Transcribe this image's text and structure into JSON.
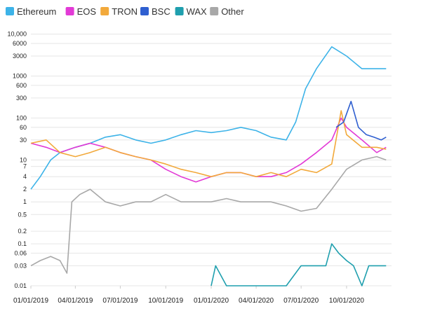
{
  "chart_data": {
    "type": "line",
    "y_scale": "log",
    "ylim": [
      0.01,
      12000
    ],
    "grid": "horizontal",
    "legend_position": "top-left",
    "y_ticks": [
      {
        "v": 0.01,
        "label": "0.01"
      },
      {
        "v": 0.03,
        "label": "0.03"
      },
      {
        "v": 0.06,
        "label": "0.06"
      },
      {
        "v": 0.1,
        "label": "0.1"
      },
      {
        "v": 0.2,
        "label": "0.2"
      },
      {
        "v": 0.5,
        "label": "0.5"
      },
      {
        "v": 1,
        "label": "1"
      },
      {
        "v": 2,
        "label": "2"
      },
      {
        "v": 4,
        "label": "4"
      },
      {
        "v": 7,
        "label": "7"
      },
      {
        "v": 10,
        "label": "10"
      },
      {
        "v": 30,
        "label": "30"
      },
      {
        "v": 60,
        "label": "60"
      },
      {
        "v": 100,
        "label": "100"
      },
      {
        "v": 300,
        "label": "300"
      },
      {
        "v": 600,
        "label": "600"
      },
      {
        "v": 1000,
        "label": "1000"
      },
      {
        "v": 3000,
        "label": "3000"
      },
      {
        "v": 6000,
        "label": "6000"
      },
      {
        "v": 10000,
        "label": "10,000"
      }
    ],
    "x_ticks": [
      {
        "date": "2019-01-01",
        "label": "01/01/2019"
      },
      {
        "date": "2019-04-01",
        "label": "04/01/2019"
      },
      {
        "date": "2019-07-01",
        "label": "07/01/2019"
      },
      {
        "date": "2019-10-01",
        "label": "10/01/2019"
      },
      {
        "date": "2020-01-01",
        "label": "01/01/2020"
      },
      {
        "date": "2020-04-01",
        "label": "04/01/2020"
      },
      {
        "date": "2020-07-01",
        "label": "07/01/2020"
      },
      {
        "date": "2020-10-01",
        "label": "10/01/2020"
      }
    ],
    "series": [
      {
        "name": "Ethereum",
        "color": "#3db3e8",
        "points": [
          [
            "2019-01-01",
            2
          ],
          [
            "2019-01-20",
            4
          ],
          [
            "2019-02-10",
            10
          ],
          [
            "2019-03-01",
            15
          ],
          [
            "2019-04-01",
            20
          ],
          [
            "2019-05-01",
            25
          ],
          [
            "2019-06-01",
            35
          ],
          [
            "2019-07-01",
            40
          ],
          [
            "2019-08-01",
            30
          ],
          [
            "2019-09-01",
            25
          ],
          [
            "2019-10-01",
            30
          ],
          [
            "2019-11-01",
            40
          ],
          [
            "2019-12-01",
            50
          ],
          [
            "2020-01-01",
            45
          ],
          [
            "2020-02-01",
            50
          ],
          [
            "2020-03-01",
            60
          ],
          [
            "2020-04-01",
            50
          ],
          [
            "2020-05-01",
            35
          ],
          [
            "2020-06-01",
            30
          ],
          [
            "2020-06-20",
            80
          ],
          [
            "2020-07-10",
            500
          ],
          [
            "2020-08-01",
            1500
          ],
          [
            "2020-09-01",
            5000
          ],
          [
            "2020-10-01",
            3000
          ],
          [
            "2020-11-01",
            1500
          ],
          [
            "2020-12-01",
            1500
          ],
          [
            "2020-12-20",
            1500
          ]
        ]
      },
      {
        "name": "EOS",
        "color": "#e23ad6",
        "points": [
          [
            "2019-01-01",
            25
          ],
          [
            "2019-02-01",
            20
          ],
          [
            "2019-03-01",
            15
          ],
          [
            "2019-04-01",
            20
          ],
          [
            "2019-05-01",
            25
          ],
          [
            "2019-06-01",
            20
          ],
          [
            "2019-07-01",
            15
          ],
          [
            "2019-08-01",
            12
          ],
          [
            "2019-09-01",
            10
          ],
          [
            "2019-10-01",
            6
          ],
          [
            "2019-11-01",
            4
          ],
          [
            "2019-12-01",
            3
          ],
          [
            "2020-01-01",
            4
          ],
          [
            "2020-02-01",
            5
          ],
          [
            "2020-03-01",
            5
          ],
          [
            "2020-04-01",
            4
          ],
          [
            "2020-05-01",
            4
          ],
          [
            "2020-06-01",
            5
          ],
          [
            "2020-07-01",
            8
          ],
          [
            "2020-08-01",
            15
          ],
          [
            "2020-09-01",
            30
          ],
          [
            "2020-09-20",
            100
          ],
          [
            "2020-10-01",
            60
          ],
          [
            "2020-11-01",
            30
          ],
          [
            "2020-12-01",
            15
          ],
          [
            "2020-12-20",
            20
          ]
        ]
      },
      {
        "name": "TRON",
        "color": "#f2a93b",
        "points": [
          [
            "2019-01-01",
            25
          ],
          [
            "2019-02-01",
            30
          ],
          [
            "2019-03-01",
            15
          ],
          [
            "2019-04-01",
            12
          ],
          [
            "2019-05-01",
            15
          ],
          [
            "2019-06-01",
            20
          ],
          [
            "2019-07-01",
            15
          ],
          [
            "2019-08-01",
            12
          ],
          [
            "2019-09-01",
            10
          ],
          [
            "2019-10-01",
            8
          ],
          [
            "2019-11-01",
            6
          ],
          [
            "2019-12-01",
            5
          ],
          [
            "2020-01-01",
            4
          ],
          [
            "2020-02-01",
            5
          ],
          [
            "2020-03-01",
            5
          ],
          [
            "2020-04-01",
            4
          ],
          [
            "2020-05-01",
            5
          ],
          [
            "2020-06-01",
            4
          ],
          [
            "2020-07-01",
            6
          ],
          [
            "2020-08-01",
            5
          ],
          [
            "2020-09-01",
            8
          ],
          [
            "2020-09-20",
            150
          ],
          [
            "2020-10-01",
            40
          ],
          [
            "2020-11-01",
            20
          ],
          [
            "2020-12-01",
            20
          ],
          [
            "2020-12-20",
            18
          ]
        ]
      },
      {
        "name": "BSC",
        "color": "#2f5fd0",
        "points": [
          [
            "2020-09-10",
            60
          ],
          [
            "2020-09-25",
            80
          ],
          [
            "2020-10-10",
            250
          ],
          [
            "2020-10-25",
            60
          ],
          [
            "2020-11-10",
            40
          ],
          [
            "2020-11-25",
            35
          ],
          [
            "2020-12-10",
            30
          ],
          [
            "2020-12-20",
            35
          ]
        ]
      },
      {
        "name": "WAX",
        "color": "#1f9fae",
        "points": [
          [
            "2020-01-01",
            0.01
          ],
          [
            "2020-01-10",
            0.03
          ],
          [
            "2020-02-01",
            0.01
          ],
          [
            "2020-03-01",
            0.01
          ],
          [
            "2020-04-01",
            0.01
          ],
          [
            "2020-05-01",
            0.01
          ],
          [
            "2020-06-01",
            0.01
          ],
          [
            "2020-07-01",
            0.03
          ],
          [
            "2020-08-01",
            0.03
          ],
          [
            "2020-08-20",
            0.03
          ],
          [
            "2020-09-01",
            0.1
          ],
          [
            "2020-09-15",
            0.06
          ],
          [
            "2020-10-01",
            0.04
          ],
          [
            "2020-10-15",
            0.03
          ],
          [
            "2020-11-01",
            0.01
          ],
          [
            "2020-11-15",
            0.03
          ],
          [
            "2020-12-01",
            0.03
          ],
          [
            "2020-12-20",
            0.03
          ]
        ]
      },
      {
        "name": "Other",
        "color": "#a8a8a8",
        "points": [
          [
            "2019-01-01",
            0.03
          ],
          [
            "2019-01-20",
            0.04
          ],
          [
            "2019-02-10",
            0.05
          ],
          [
            "2019-03-01",
            0.04
          ],
          [
            "2019-03-15",
            0.02
          ],
          [
            "2019-03-25",
            1
          ],
          [
            "2019-04-10",
            1.5
          ],
          [
            "2019-05-01",
            2
          ],
          [
            "2019-06-01",
            1
          ],
          [
            "2019-07-01",
            0.8
          ],
          [
            "2019-08-01",
            1
          ],
          [
            "2019-09-01",
            1
          ],
          [
            "2019-10-01",
            1.5
          ],
          [
            "2019-11-01",
            1
          ],
          [
            "2019-12-01",
            1
          ],
          [
            "2020-01-01",
            1
          ],
          [
            "2020-02-01",
            1.2
          ],
          [
            "2020-03-01",
            1
          ],
          [
            "2020-04-01",
            1
          ],
          [
            "2020-05-01",
            1
          ],
          [
            "2020-06-01",
            0.8
          ],
          [
            "2020-07-01",
            0.6
          ],
          [
            "2020-08-01",
            0.7
          ],
          [
            "2020-09-01",
            2
          ],
          [
            "2020-10-01",
            6
          ],
          [
            "2020-11-01",
            10
          ],
          [
            "2020-12-01",
            12
          ],
          [
            "2020-12-20",
            10
          ]
        ]
      }
    ]
  }
}
